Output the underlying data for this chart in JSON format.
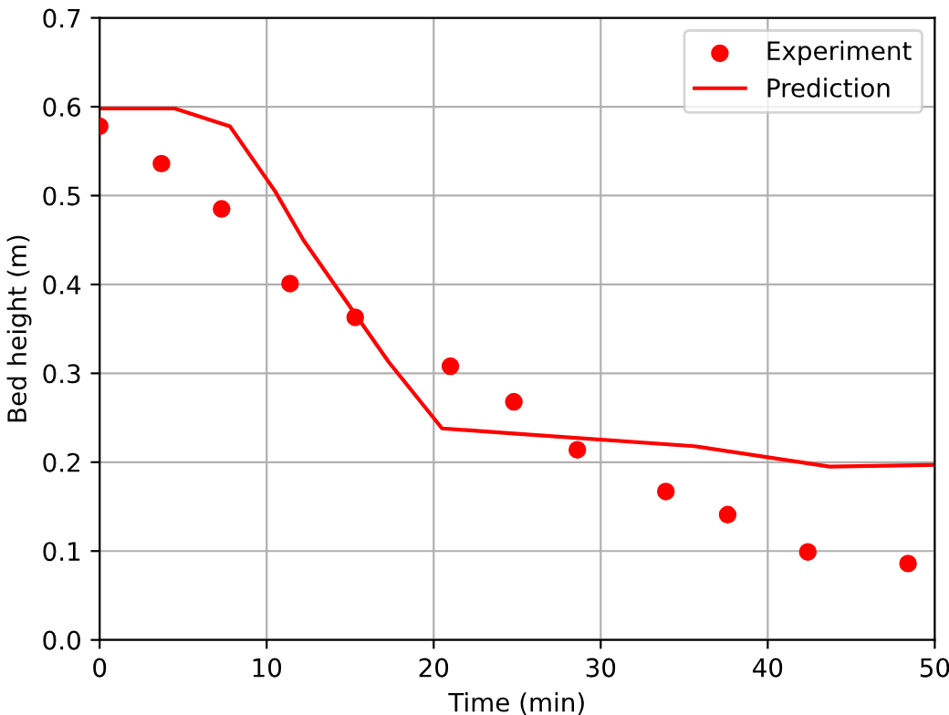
{
  "chart_data": {
    "type": "scatter",
    "xlabel": "Time (min)",
    "ylabel": "Bed height (m)",
    "series": [
      {
        "name": "Experiment",
        "color": "#ff0000",
        "marker": "circle",
        "x": [
          0,
          3.7,
          7.3,
          11.4,
          15.3,
          21.0,
          24.8,
          28.6,
          33.9,
          37.6,
          42.4,
          48.4
        ],
        "values": [
          0.578,
          0.536,
          0.485,
          0.401,
          0.363,
          0.308,
          0.268,
          0.214,
          0.167,
          0.141,
          0.099,
          0.086
        ]
      },
      {
        "name": "Prediction",
        "type": "line",
        "color": "#ff0000",
        "line_style": "solid",
        "x": [
          0,
          4.5,
          7.8,
          10.5,
          12.2,
          17.3,
          20.5,
          25,
          35.6,
          43.7,
          50
        ],
        "values": [
          0.598,
          0.598,
          0.578,
          0.505,
          0.45,
          0.313,
          0.238,
          0.232,
          0.218,
          0.195,
          0.197
        ]
      }
    ],
    "xlim": [
      0,
      50
    ],
    "ylim": [
      0,
      0.7
    ],
    "xticks": [
      0,
      10,
      20,
      30,
      40,
      50
    ],
    "yticks": [
      {
        "value": 0,
        "label": "0.0"
      },
      0.1,
      0.2,
      0.3,
      0.4,
      0.5,
      0.6,
      0.7
    ],
    "grid": true,
    "legend": "top right"
  }
}
